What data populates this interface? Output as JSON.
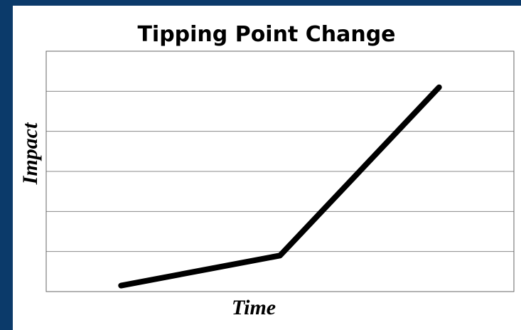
{
  "chart_data": {
    "type": "line",
    "title": "Tipping Point Change",
    "xlabel": "Time",
    "ylabel": "Impact",
    "x": [
      1.6,
      5.0,
      8.4
    ],
    "series": [
      {
        "name": null,
        "color": "#000000",
        "values": [
          0.15,
          0.9,
          5.1
        ]
      }
    ],
    "xlim": [
      0,
      10
    ],
    "ylim": [
      0,
      6
    ],
    "yticks": [
      0,
      1,
      2,
      3,
      4,
      5,
      6
    ],
    "grid": true
  }
}
